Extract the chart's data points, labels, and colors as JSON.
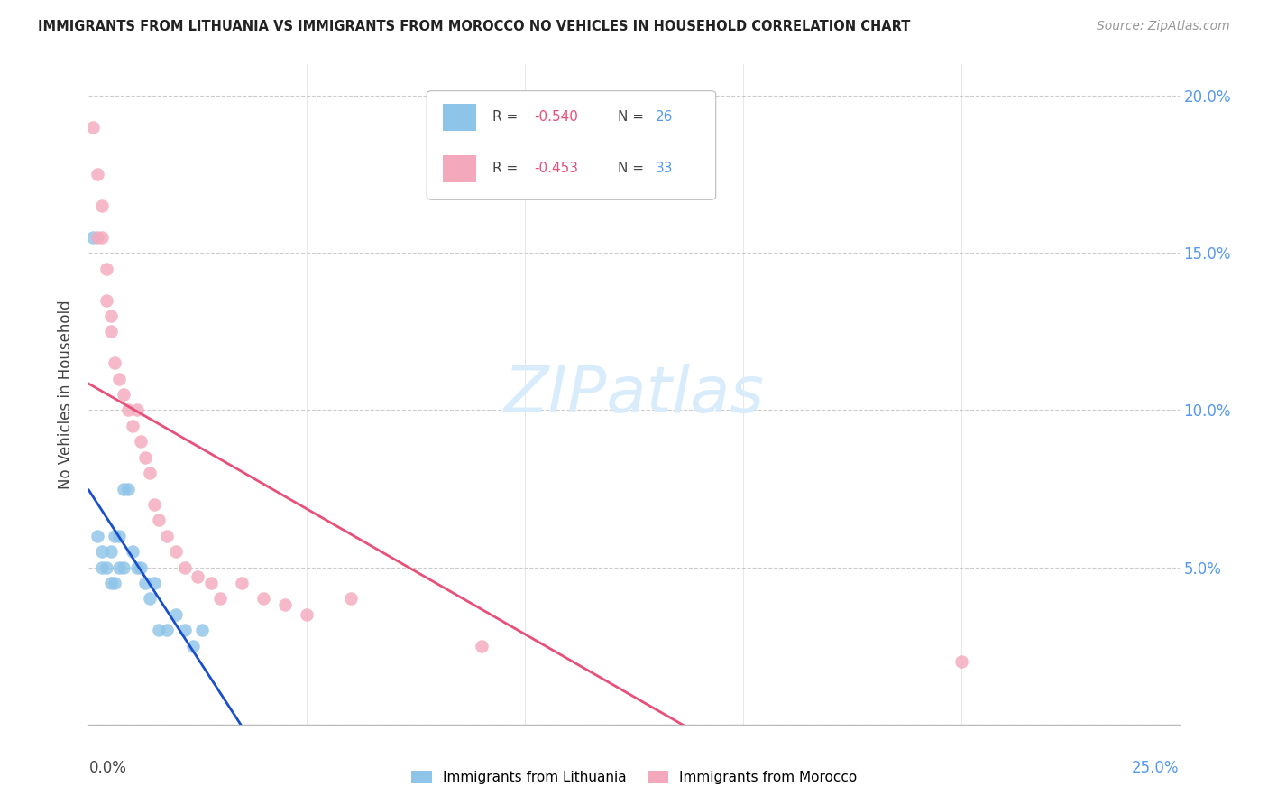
{
  "title": "IMMIGRANTS FROM LITHUANIA VS IMMIGRANTS FROM MOROCCO NO VEHICLES IN HOUSEHOLD CORRELATION CHART",
  "source": "Source: ZipAtlas.com",
  "ylabel": "No Vehicles in Household",
  "color_lithuania": "#8EC4E8",
  "color_morocco": "#F4A8BC",
  "color_line_lithuania": "#1A4FCC",
  "color_line_morocco": "#E8507A",
  "color_grid": "#CCCCCC",
  "color_right_tick": "#5599EE",
  "watermark_color": "#D8ECFC",
  "xlim": [
    0,
    0.25
  ],
  "ylim": [
    0,
    0.21
  ],
  "yticks": [
    0.0,
    0.05,
    0.1,
    0.15,
    0.2
  ],
  "ytick_labels_right": [
    "",
    "5.0%",
    "10.0%",
    "15.0%",
    "20.0%"
  ],
  "legend_r1": "R = -0.540",
  "legend_n1": "N = 26",
  "legend_r2": "R = -0.453",
  "legend_n2": "N = 33",
  "lith_x": [
    0.001,
    0.002,
    0.003,
    0.003,
    0.004,
    0.005,
    0.005,
    0.006,
    0.006,
    0.007,
    0.007,
    0.008,
    0.008,
    0.009,
    0.01,
    0.011,
    0.012,
    0.013,
    0.014,
    0.015,
    0.016,
    0.018,
    0.02,
    0.022,
    0.024,
    0.026
  ],
  "lith_y": [
    0.155,
    0.06,
    0.055,
    0.05,
    0.05,
    0.045,
    0.055,
    0.045,
    0.06,
    0.05,
    0.06,
    0.05,
    0.075,
    0.075,
    0.055,
    0.05,
    0.05,
    0.045,
    0.04,
    0.045,
    0.03,
    0.03,
    0.035,
    0.03,
    0.025,
    0.03
  ],
  "moroc_x": [
    0.001,
    0.002,
    0.002,
    0.003,
    0.003,
    0.004,
    0.004,
    0.005,
    0.005,
    0.006,
    0.007,
    0.008,
    0.009,
    0.01,
    0.011,
    0.012,
    0.013,
    0.014,
    0.015,
    0.016,
    0.018,
    0.02,
    0.022,
    0.025,
    0.028,
    0.03,
    0.035,
    0.04,
    0.045,
    0.05,
    0.06,
    0.09,
    0.2
  ],
  "moroc_y": [
    0.19,
    0.175,
    0.155,
    0.155,
    0.165,
    0.145,
    0.135,
    0.13,
    0.125,
    0.115,
    0.11,
    0.105,
    0.1,
    0.095,
    0.1,
    0.09,
    0.085,
    0.08,
    0.07,
    0.065,
    0.06,
    0.055,
    0.05,
    0.047,
    0.045,
    0.04,
    0.045,
    0.04,
    0.038,
    0.035,
    0.04,
    0.025,
    0.02
  ]
}
